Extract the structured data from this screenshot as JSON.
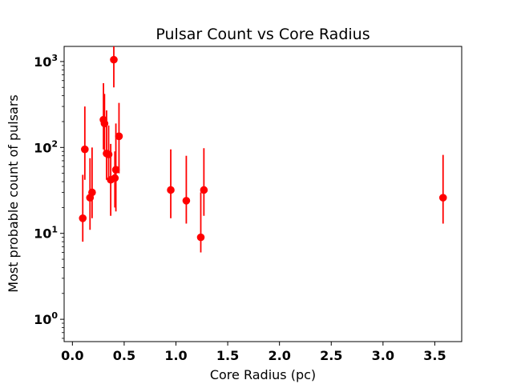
{
  "chart_data": {
    "type": "scatter",
    "title": "Pulsar Count vs Core Radius",
    "xlabel": "Core Radius (pc)",
    "ylabel": "Most probable count of pulsars",
    "xlim": [
      -0.08,
      3.76
    ],
    "ylim": [
      0.55,
      1500
    ],
    "yscale": "log",
    "x_ticks": [
      0.0,
      0.5,
      1.0,
      1.5,
      2.0,
      2.5,
      3.0,
      3.5
    ],
    "x_tick_labels": [
      "0.0",
      "0.5",
      "1.0",
      "1.5",
      "2.0",
      "2.5",
      "3.0",
      "3.5"
    ],
    "y_ticks": [
      1,
      10,
      100,
      1000
    ],
    "y_tick_base": "10",
    "y_tick_exponents": [
      "0",
      "1",
      "2",
      "3"
    ],
    "grid": false,
    "color": "#ff0000",
    "points": [
      {
        "x": 0.1,
        "y": 15,
        "lo": 8,
        "hi": 48
      },
      {
        "x": 0.12,
        "y": 95,
        "lo": 42,
        "hi": 300
      },
      {
        "x": 0.17,
        "y": 26,
        "lo": 11,
        "hi": 75
      },
      {
        "x": 0.19,
        "y": 30,
        "lo": 15,
        "hi": 100
      },
      {
        "x": 0.3,
        "y": 210,
        "lo": 95,
        "hi": 560
      },
      {
        "x": 0.31,
        "y": 190,
        "lo": 80,
        "hi": 420
      },
      {
        "x": 0.33,
        "y": 85,
        "lo": 42,
        "hi": 270
      },
      {
        "x": 0.35,
        "y": 83,
        "lo": 40,
        "hi": 180
      },
      {
        "x": 0.37,
        "y": 42,
        "lo": 16,
        "hi": 110
      },
      {
        "x": 0.4,
        "y": 1050,
        "lo": 500,
        "hi": 1500
      },
      {
        "x": 0.41,
        "y": 44,
        "lo": 20,
        "hi": 90
      },
      {
        "x": 0.42,
        "y": 55,
        "lo": 18,
        "hi": 190
      },
      {
        "x": 0.45,
        "y": 135,
        "lo": 50,
        "hi": 330
      },
      {
        "x": 0.95,
        "y": 32,
        "lo": 15,
        "hi": 95
      },
      {
        "x": 1.1,
        "y": 24,
        "lo": 13,
        "hi": 80
      },
      {
        "x": 1.24,
        "y": 9,
        "lo": 6,
        "hi": 30
      },
      {
        "x": 1.27,
        "y": 32,
        "lo": 16,
        "hi": 98
      },
      {
        "x": 3.58,
        "y": 26,
        "lo": 13,
        "hi": 82
      }
    ]
  }
}
